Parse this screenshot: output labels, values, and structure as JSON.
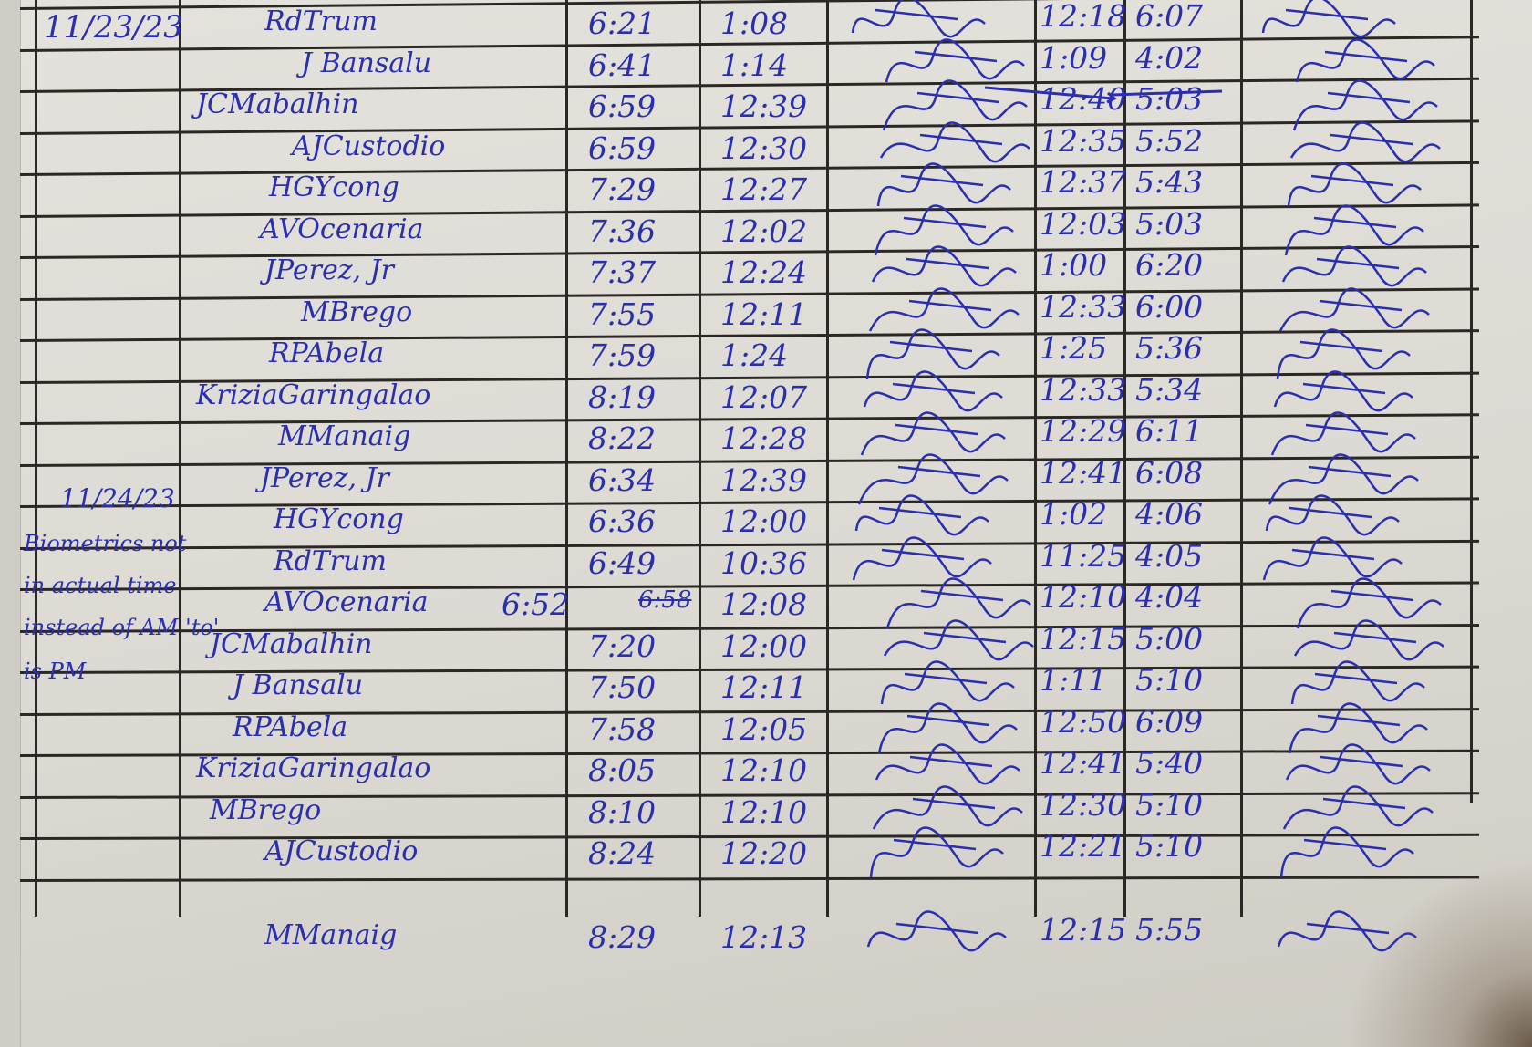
{
  "ink_color": "#2b2fae",
  "paper_color": "#dcdad3",
  "dates": [
    "11/23/23",
    "11/24/23"
  ],
  "note_lines": [
    "Biometrics not",
    "in actual time",
    "instead of AM 'to'",
    "is PM"
  ],
  "rows": [
    {
      "name": "RdTrum",
      "am_in": "6:21",
      "am_out": "1:08",
      "pm_in": "12:18",
      "pm_out": "6:07"
    },
    {
      "name": "J Bansalu",
      "am_in": "6:41",
      "am_out": "1:14",
      "pm_in": "1:09",
      "pm_out": "4:02"
    },
    {
      "name": "JCMabalhin",
      "am_in": "6:59",
      "am_out": "12:39",
      "pm_in": "12:40",
      "pm_out": "5:03"
    },
    {
      "name": "AJCustodio",
      "am_in": "6:59",
      "am_out": "12:30",
      "pm_in": "12:35",
      "pm_out": "5:52"
    },
    {
      "name": "HGYcong",
      "am_in": "7:29",
      "am_out": "12:27",
      "pm_in": "12:37",
      "pm_out": "5:43"
    },
    {
      "name": "AVOcenaria",
      "am_in": "7:36",
      "am_out": "12:02",
      "pm_in": "12:03",
      "pm_out": "5:03"
    },
    {
      "name": "JPerez, Jr",
      "am_in": "7:37",
      "am_out": "12:24",
      "pm_in": "1:00",
      "pm_out": "6:20"
    },
    {
      "name": "MBrego",
      "am_in": "7:55",
      "am_out": "12:11",
      "pm_in": "12:33",
      "pm_out": "6:00"
    },
    {
      "name": "RPAbela",
      "am_in": "7:59",
      "am_out": "1:24",
      "pm_in": "1:25",
      "pm_out": "5:36"
    },
    {
      "name": "KriziaGaringalao",
      "am_in": "8:19",
      "am_out": "12:07",
      "pm_in": "12:33",
      "pm_out": "5:34"
    },
    {
      "name": "MManaig",
      "am_in": "8:22",
      "am_out": "12:28",
      "pm_in": "12:29",
      "pm_out": "6:11"
    },
    {
      "name": "JPerez, Jr",
      "am_in": "6:34",
      "am_out": "12:39",
      "pm_in": "12:41",
      "pm_out": "6:08"
    },
    {
      "name": "HGYcong",
      "am_in": "6:36",
      "am_out": "12:00",
      "pm_in": "1:02",
      "pm_out": "4:06"
    },
    {
      "name": "RdTrum",
      "am_in": "6:49",
      "am_out": "10:36",
      "pm_in": "11:25",
      "pm_out": "4:05"
    },
    {
      "name": "AVOcenaria",
      "am_in": "6:52",
      "am_in_struck": "6:58",
      "am_out": "12:08",
      "pm_in": "12:10",
      "pm_out": "4:04"
    },
    {
      "name": "JCMabalhin",
      "am_in": "7:20",
      "am_out": "12:00",
      "pm_in": "12:15",
      "pm_out": "5:00"
    },
    {
      "name": "J Bansalu",
      "am_in": "7:50",
      "am_out": "12:11",
      "pm_in": "1:11",
      "pm_out": "5:10"
    },
    {
      "name": "RPAbela",
      "am_in": "7:58",
      "am_out": "12:05",
      "pm_in": "12:50",
      "pm_out": "6:09"
    },
    {
      "name": "KriziaGaringalao",
      "am_in": "8:05",
      "am_out": "12:10",
      "pm_in": "12:41",
      "pm_out": "5:40"
    },
    {
      "name": "MBrego",
      "am_in": "8:10",
      "am_out": "12:10",
      "pm_in": "12:30",
      "pm_out": "5:10"
    },
    {
      "name": "AJCustodio",
      "am_in": "8:24",
      "am_out": "12:20",
      "pm_in": "12:21",
      "pm_out": "5:10"
    },
    {
      "name": "MManaig",
      "am_in": "8:29",
      "am_out": "12:13",
      "pm_in": "12:15",
      "pm_out": "5:55"
    }
  ]
}
